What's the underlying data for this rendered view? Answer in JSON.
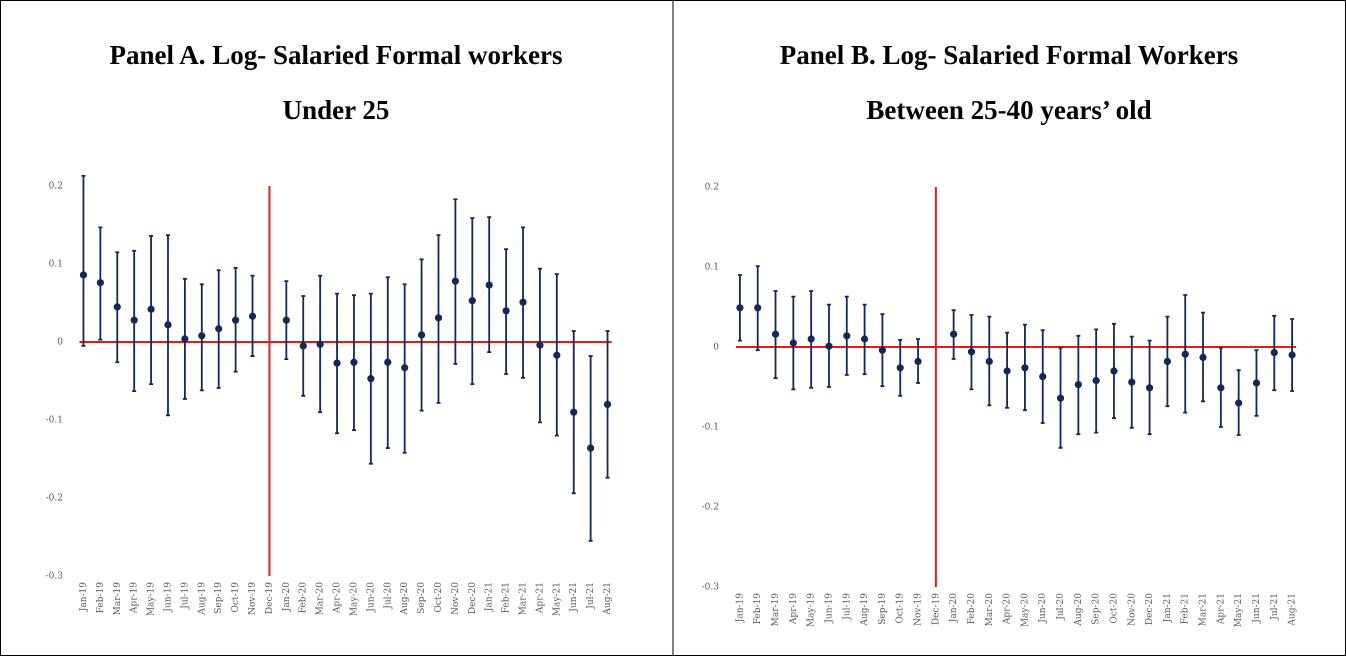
{
  "chart_data": [
    {
      "type": "errorbar",
      "title": "Panel A.  Log- Salaried Formal workers",
      "subtitle": "Under 25",
      "categories": [
        "Jan-19",
        "Feb-19",
        "Mar-19",
        "Apr-19",
        "May-19",
        "Jun-19",
        "Jul-19",
        "Aug-19",
        "Sep-19",
        "Oct-19",
        "Nov-19",
        "Dec-19",
        "Jan-20",
        "Feb-20",
        "Mar-20",
        "Apr-20",
        "May-20",
        "Jun-20",
        "Jul-20",
        "Aug-20",
        "Sep-20",
        "Oct-20",
        "Nov-20",
        "Dec-20",
        "Jan-21",
        "Feb-21",
        "Mar-21",
        "Apr-21",
        "May-21",
        "Jun-21",
        "Jul-21",
        "Aug-21"
      ],
      "values": [
        0.086,
        0.076,
        0.045,
        0.028,
        0.042,
        0.022,
        0.004,
        0.008,
        0.017,
        0.028,
        0.033,
        null,
        0.028,
        -0.005,
        -0.003,
        -0.027,
        -0.026,
        -0.047,
        -0.026,
        -0.033,
        0.009,
        0.031,
        0.078,
        0.053,
        0.073,
        0.04,
        0.051,
        -0.004,
        -0.017,
        -0.09,
        -0.136,
        -0.08
      ],
      "lower": [
        -0.005,
        0.003,
        -0.026,
        -0.063,
        -0.054,
        -0.094,
        -0.073,
        -0.062,
        -0.059,
        -0.038,
        -0.018,
        null,
        -0.022,
        -0.069,
        -0.09,
        -0.117,
        -0.113,
        -0.156,
        -0.136,
        -0.142,
        -0.088,
        -0.078,
        -0.028,
        -0.054,
        -0.013,
        -0.041,
        -0.046,
        -0.103,
        -0.12,
        -0.194,
        -0.255,
        -0.174
      ],
      "upper": [
        0.213,
        0.147,
        0.115,
        0.117,
        0.136,
        0.137,
        0.081,
        0.074,
        0.092,
        0.095,
        0.085,
        null,
        0.078,
        0.059,
        0.085,
        0.062,
        0.06,
        0.062,
        0.083,
        0.074,
        0.106,
        0.137,
        0.183,
        0.159,
        0.16,
        0.119,
        0.147,
        0.094,
        0.087,
        0.014,
        -0.018,
        0.014
      ],
      "color": "#13285a",
      "ref_color": "#e8191a",
      "vline": "Dec-19",
      "hline": 0,
      "ylim": [
        -0.3,
        0.2
      ],
      "yticks": [
        0.2,
        0.1,
        0,
        -0.1,
        -0.2,
        -0.3
      ]
    },
    {
      "type": "errorbar",
      "title": "Panel B. Log- Salaried Formal Workers",
      "subtitle": "Between 25-40 years’ old",
      "categories": [
        "Jan-19",
        "Feb-19",
        "Mar-19",
        "Apr-19",
        "May-19",
        "Jun-19",
        "Jul-19",
        "Aug-19",
        "Sep-19",
        "Oct-19",
        "Nov-19",
        "Dec-19",
        "Jan-20",
        "Feb-20",
        "Mar-20",
        "Apr-20",
        "May-20",
        "Jun-20",
        "Jul-20",
        "Aug-20",
        "Sep-20",
        "Oct-20",
        "Nov-20",
        "Dec-20",
        "Jan-21",
        "Feb-21",
        "Mar-21",
        "Apr-21",
        "May-21",
        "Jun-21",
        "Jul-21",
        "Aug-21"
      ],
      "values": [
        0.049,
        0.049,
        0.016,
        0.005,
        0.01,
        0.001,
        0.014,
        0.01,
        -0.004,
        -0.026,
        -0.018,
        null,
        0.016,
        -0.006,
        -0.018,
        -0.03,
        -0.026,
        -0.037,
        -0.064,
        -0.047,
        -0.042,
        -0.03,
        -0.044,
        -0.051,
        -0.018,
        -0.009,
        -0.013,
        -0.051,
        -0.07,
        -0.045,
        -0.007,
        -0.01
      ],
      "lower": [
        0.008,
        -0.004,
        -0.039,
        -0.053,
        -0.051,
        -0.05,
        -0.035,
        -0.034,
        -0.049,
        -0.061,
        -0.045,
        null,
        -0.015,
        -0.053,
        -0.073,
        -0.076,
        -0.079,
        -0.095,
        -0.126,
        -0.109,
        -0.107,
        -0.089,
        -0.101,
        -0.109,
        -0.074,
        -0.082,
        -0.068,
        -0.1,
        -0.11,
        -0.086,
        -0.054,
        -0.055
      ],
      "upper": [
        0.09,
        0.101,
        0.07,
        0.063,
        0.07,
        0.053,
        0.063,
        0.053,
        0.041,
        0.009,
        0.01,
        null,
        0.046,
        0.04,
        0.038,
        0.018,
        0.028,
        0.021,
        -0.001,
        0.014,
        0.022,
        0.029,
        0.013,
        0.008,
        0.038,
        0.065,
        0.043,
        -0.001,
        -0.029,
        -0.004,
        0.039,
        0.035
      ],
      "color": "#13285a",
      "ref_color": "#e8191a",
      "vline": "Dec-19",
      "hline": 0,
      "ylim": [
        -0.3,
        0.2
      ],
      "yticks": [
        0.2,
        0.1,
        0,
        -0.1,
        -0.2,
        -0.3
      ]
    }
  ]
}
